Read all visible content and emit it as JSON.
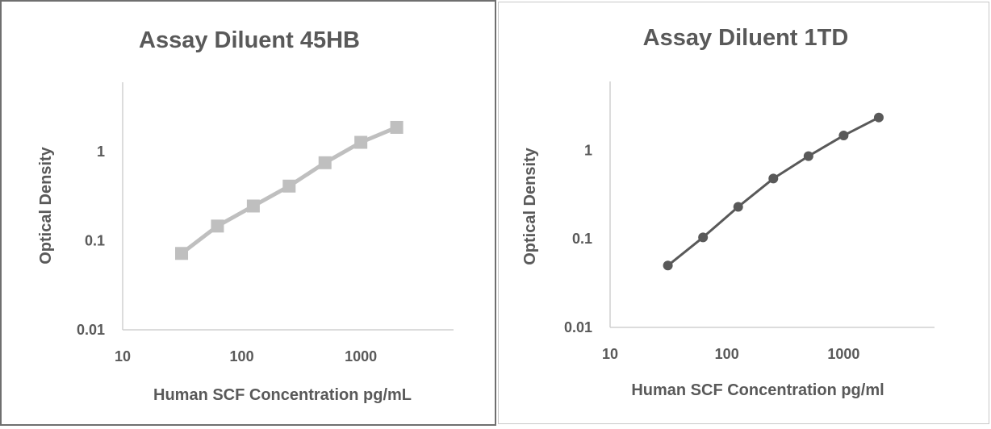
{
  "chart_data": [
    {
      "type": "line",
      "title": "Assay Diluent 45HB",
      "xlabel": "Human SCF Concentration pg/mL",
      "ylabel": "Optical Density",
      "x_scale": "log",
      "y_scale": "log",
      "xlim": [
        10,
        6000
      ],
      "ylim": [
        0.01,
        6
      ],
      "x_ticks": [
        "10",
        "100",
        "1000"
      ],
      "y_ticks": [
        "0.01",
        "0.1",
        "1"
      ],
      "grid": false,
      "legend": false,
      "marker": "square",
      "color": "#bfbfbf",
      "series": [
        {
          "x": [
            31.25,
            62.5,
            125,
            250,
            500,
            1000,
            2000
          ],
          "y": [
            0.072,
            0.146,
            0.245,
            0.41,
            0.75,
            1.27,
            1.87
          ]
        }
      ]
    },
    {
      "type": "line",
      "title": "Assay Diluent 1TD",
      "xlabel": "Human SCF Concentration pg/ml",
      "ylabel": "Optical Density",
      "x_scale": "log",
      "y_scale": "log",
      "xlim": [
        10,
        6000
      ],
      "ylim": [
        0.01,
        6
      ],
      "x_ticks": [
        "10",
        "100",
        "1000"
      ],
      "y_ticks": [
        "0.01",
        "0.1",
        "1"
      ],
      "grid": false,
      "legend": false,
      "marker": "circle",
      "color": "#595959",
      "series": [
        {
          "x": [
            31.25,
            62.5,
            125,
            250,
            500,
            1000,
            2000
          ],
          "y": [
            0.05,
            0.104,
            0.23,
            0.48,
            0.86,
            1.47,
            2.35
          ]
        }
      ]
    }
  ]
}
